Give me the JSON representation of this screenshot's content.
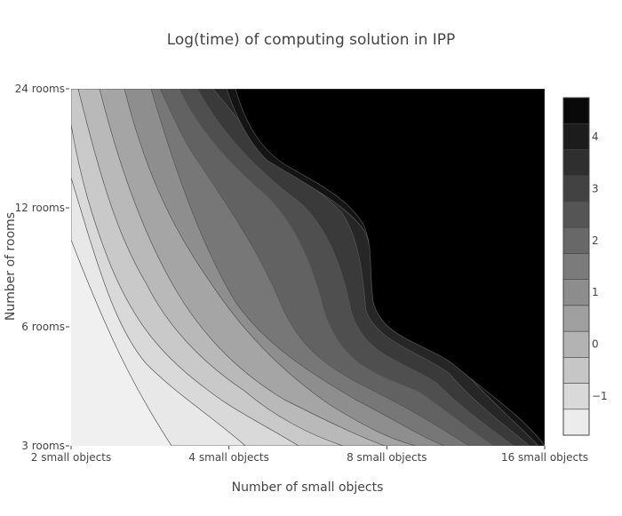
{
  "chart_data": {
    "type": "heatmap",
    "subtype": "contour",
    "title": "Log(time) of computing solution in IPP",
    "xlabel": "Number of small objects",
    "ylabel": "Number of rooms",
    "x_scale": "log",
    "y_scale": "log",
    "x": [
      2,
      4,
      8,
      16
    ],
    "y": [
      3,
      6,
      12,
      24
    ],
    "x_tick_labels": [
      "2 small objects",
      "4 small objects",
      "8 small objects",
      "16 small objects"
    ],
    "y_tick_labels": [
      "3 rooms",
      "6 rooms",
      "12 rooms",
      "24 rooms"
    ],
    "colorscale": "greys (low = light, high = dark)",
    "colorbar": {
      "range": [
        -1.75,
        4.75
      ],
      "step": 0.5,
      "tick_values": [
        -1,
        0,
        1,
        2,
        3,
        4
      ],
      "tick_labels": [
        "−1",
        "0",
        "1",
        "2",
        "3",
        "4"
      ]
    },
    "contour_levels": [
      -1.5,
      -1,
      -0.5,
      0,
      0.5,
      1,
      1.5,
      2,
      2.5,
      3,
      3.5,
      4,
      4.5
    ],
    "z_estimate_note_free": true,
    "z": [
      [
        -1.75,
        -1.0,
        1.0,
        4.75
      ],
      [
        -1.0,
        1.0,
        3.0,
        4.75
      ],
      [
        0.0,
        2.0,
        4.0,
        4.75
      ],
      [
        1.0,
        3.5,
        4.75,
        4.75
      ]
    ],
    "legend": "colorbar right"
  },
  "colors": {
    "background": "#ffffff",
    "contour_line": "#555555",
    "text": "#444444"
  }
}
